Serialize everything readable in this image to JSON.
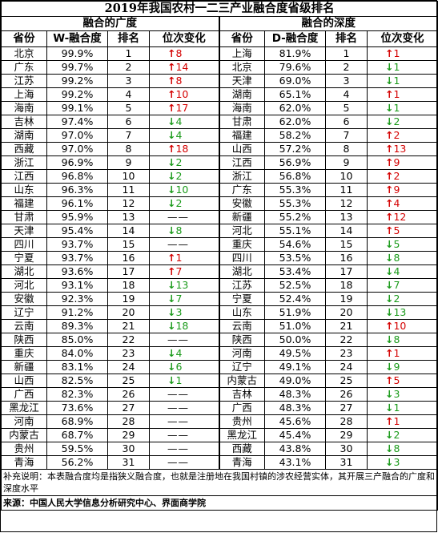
{
  "title": "2019年我国农村一二三产业融合度省级排名",
  "breadth": {
    "section_title": "融合的广度",
    "headers": [
      "省份",
      "W-融合度",
      "排名",
      "位次变化"
    ],
    "rows": [
      {
        "province": "北京",
        "value": "99.9%",
        "rank": "1",
        "dir": "up",
        "change": "8"
      },
      {
        "province": "广东",
        "value": "99.7%",
        "rank": "2",
        "dir": "up",
        "change": "14"
      },
      {
        "province": "江苏",
        "value": "99.2%",
        "rank": "3",
        "dir": "up",
        "change": "8"
      },
      {
        "province": "上海",
        "value": "99.2%",
        "rank": "4",
        "dir": "up",
        "change": "10"
      },
      {
        "province": "海南",
        "value": "99.1%",
        "rank": "5",
        "dir": "up",
        "change": "17"
      },
      {
        "province": "吉林",
        "value": "97.4%",
        "rank": "6",
        "dir": "down",
        "change": "4"
      },
      {
        "province": "湖南",
        "value": "97.0%",
        "rank": "7",
        "dir": "down",
        "change": "4"
      },
      {
        "province": "西藏",
        "value": "97.0%",
        "rank": "8",
        "dir": "up",
        "change": "18"
      },
      {
        "province": "浙江",
        "value": "96.9%",
        "rank": "9",
        "dir": "down",
        "change": "2"
      },
      {
        "province": "江西",
        "value": "96.8%",
        "rank": "10",
        "dir": "down",
        "change": "2"
      },
      {
        "province": "山东",
        "value": "96.3%",
        "rank": "11",
        "dir": "down",
        "change": "10"
      },
      {
        "province": "福建",
        "value": "96.1%",
        "rank": "12",
        "dir": "down",
        "change": "2"
      },
      {
        "province": "甘肃",
        "value": "95.9%",
        "rank": "13",
        "dir": "none",
        "change": "——"
      },
      {
        "province": "天津",
        "value": "95.4%",
        "rank": "14",
        "dir": "down",
        "change": "8"
      },
      {
        "province": "四川",
        "value": "93.7%",
        "rank": "15",
        "dir": "none",
        "change": "——"
      },
      {
        "province": "宁夏",
        "value": "93.7%",
        "rank": "16",
        "dir": "up",
        "change": "1"
      },
      {
        "province": "湖北",
        "value": "93.6%",
        "rank": "17",
        "dir": "up",
        "change": "7"
      },
      {
        "province": "河北",
        "value": "93.1%",
        "rank": "18",
        "dir": "down",
        "change": "13"
      },
      {
        "province": "安徽",
        "value": "92.3%",
        "rank": "19",
        "dir": "down",
        "change": "7"
      },
      {
        "province": "辽宁",
        "value": "91.2%",
        "rank": "20",
        "dir": "down",
        "change": "3"
      },
      {
        "province": "云南",
        "value": "89.3%",
        "rank": "21",
        "dir": "down",
        "change": "18"
      },
      {
        "province": "陕西",
        "value": "85.0%",
        "rank": "22",
        "dir": "none",
        "change": "——"
      },
      {
        "province": "重庆",
        "value": "84.0%",
        "rank": "23",
        "dir": "down",
        "change": "4"
      },
      {
        "province": "新疆",
        "value": "83.1%",
        "rank": "24",
        "dir": "down",
        "change": "6"
      },
      {
        "province": "山西",
        "value": "82.5%",
        "rank": "25",
        "dir": "down",
        "change": "1"
      },
      {
        "province": "广西",
        "value": "82.3%",
        "rank": "26",
        "dir": "none",
        "change": "——"
      },
      {
        "province": "黑龙江",
        "value": "73.6%",
        "rank": "27",
        "dir": "none",
        "change": "——"
      },
      {
        "province": "河南",
        "value": "68.9%",
        "rank": "28",
        "dir": "none",
        "change": "——"
      },
      {
        "province": "内蒙古",
        "value": "68.7%",
        "rank": "29",
        "dir": "none",
        "change": "——"
      },
      {
        "province": "贵州",
        "value": "59.5%",
        "rank": "30",
        "dir": "none",
        "change": "——"
      },
      {
        "province": "青海",
        "value": "56.2%",
        "rank": "31",
        "dir": "none",
        "change": "——"
      }
    ]
  },
  "depth": {
    "section_title": "融合的深度",
    "headers": [
      "省份",
      "D-融合度",
      "排名",
      "位次变化"
    ],
    "rows": [
      {
        "province": "上海",
        "value": "81.9%",
        "rank": "1",
        "dir": "up",
        "change": "1"
      },
      {
        "province": "北京",
        "value": "79.6%",
        "rank": "2",
        "dir": "down",
        "change": "1"
      },
      {
        "province": "天津",
        "value": "69.0%",
        "rank": "3",
        "dir": "down",
        "change": "1"
      },
      {
        "province": "湖南",
        "value": "65.1%",
        "rank": "4",
        "dir": "up",
        "change": "1"
      },
      {
        "province": "海南",
        "value": "62.0%",
        "rank": "5",
        "dir": "down",
        "change": "1"
      },
      {
        "province": "甘肃",
        "value": "62.0%",
        "rank": "6",
        "dir": "down",
        "change": "2"
      },
      {
        "province": "福建",
        "value": "58.2%",
        "rank": "7",
        "dir": "up",
        "change": "2"
      },
      {
        "province": "山西",
        "value": "57.2%",
        "rank": "8",
        "dir": "up",
        "change": "13"
      },
      {
        "province": "江西",
        "value": "56.9%",
        "rank": "9",
        "dir": "up",
        "change": "9"
      },
      {
        "province": "浙江",
        "value": "56.8%",
        "rank": "10",
        "dir": "up",
        "change": "2"
      },
      {
        "province": "广东",
        "value": "55.3%",
        "rank": "11",
        "dir": "up",
        "change": "9"
      },
      {
        "province": "安徽",
        "value": "55.3%",
        "rank": "12",
        "dir": "up",
        "change": "4"
      },
      {
        "province": "新疆",
        "value": "55.2%",
        "rank": "13",
        "dir": "up",
        "change": "12"
      },
      {
        "province": "河北",
        "value": "55.1%",
        "rank": "14",
        "dir": "up",
        "change": "5"
      },
      {
        "province": "重庆",
        "value": "54.6%",
        "rank": "15",
        "dir": "down",
        "change": "5"
      },
      {
        "province": "四川",
        "value": "53.5%",
        "rank": "16",
        "dir": "down",
        "change": "8"
      },
      {
        "province": "湖北",
        "value": "53.4%",
        "rank": "17",
        "dir": "down",
        "change": "4"
      },
      {
        "province": "江苏",
        "value": "52.5%",
        "rank": "18",
        "dir": "down",
        "change": "7"
      },
      {
        "province": "宁夏",
        "value": "52.4%",
        "rank": "19",
        "dir": "down",
        "change": "2"
      },
      {
        "province": "山东",
        "value": "51.9%",
        "rank": "20",
        "dir": "down",
        "change": "13"
      },
      {
        "province": "云南",
        "value": "51.0%",
        "rank": "21",
        "dir": "up",
        "change": "10"
      },
      {
        "province": "陕西",
        "value": "50.0%",
        "rank": "22",
        "dir": "down",
        "change": "8"
      },
      {
        "province": "河南",
        "value": "49.5%",
        "rank": "23",
        "dir": "up",
        "change": "1"
      },
      {
        "province": "辽宁",
        "value": "49.1%",
        "rank": "24",
        "dir": "down",
        "change": "9"
      },
      {
        "province": "内蒙古",
        "value": "49.0%",
        "rank": "25",
        "dir": "up",
        "change": "5"
      },
      {
        "province": "吉林",
        "value": "48.3%",
        "rank": "26",
        "dir": "down",
        "change": "3"
      },
      {
        "province": "广西",
        "value": "48.3%",
        "rank": "27",
        "dir": "down",
        "change": "1"
      },
      {
        "province": "贵州",
        "value": "45.6%",
        "rank": "28",
        "dir": "up",
        "change": "1"
      },
      {
        "province": "黑龙江",
        "value": "45.4%",
        "rank": "29",
        "dir": "down",
        "change": "2"
      },
      {
        "province": "西藏",
        "value": "43.8%",
        "rank": "30",
        "dir": "down",
        "change": "8"
      },
      {
        "province": "青海",
        "value": "43.1%",
        "rank": "31",
        "dir": "down",
        "change": "3"
      }
    ]
  },
  "note": "补充说明：本表融合度均是指狭义融合度，也就是注册地在我国村镇的涉农经营实体，其开展三产融合的广度和深度水平",
  "source": "来源：中国人民大学信息分析研究中心、界面商学院",
  "arrows": {
    "up": "↑",
    "down": "↓"
  },
  "colors": {
    "up": "#d40000",
    "down": "#1a9a1a",
    "border": "#000000",
    "background": "#ffffff"
  }
}
